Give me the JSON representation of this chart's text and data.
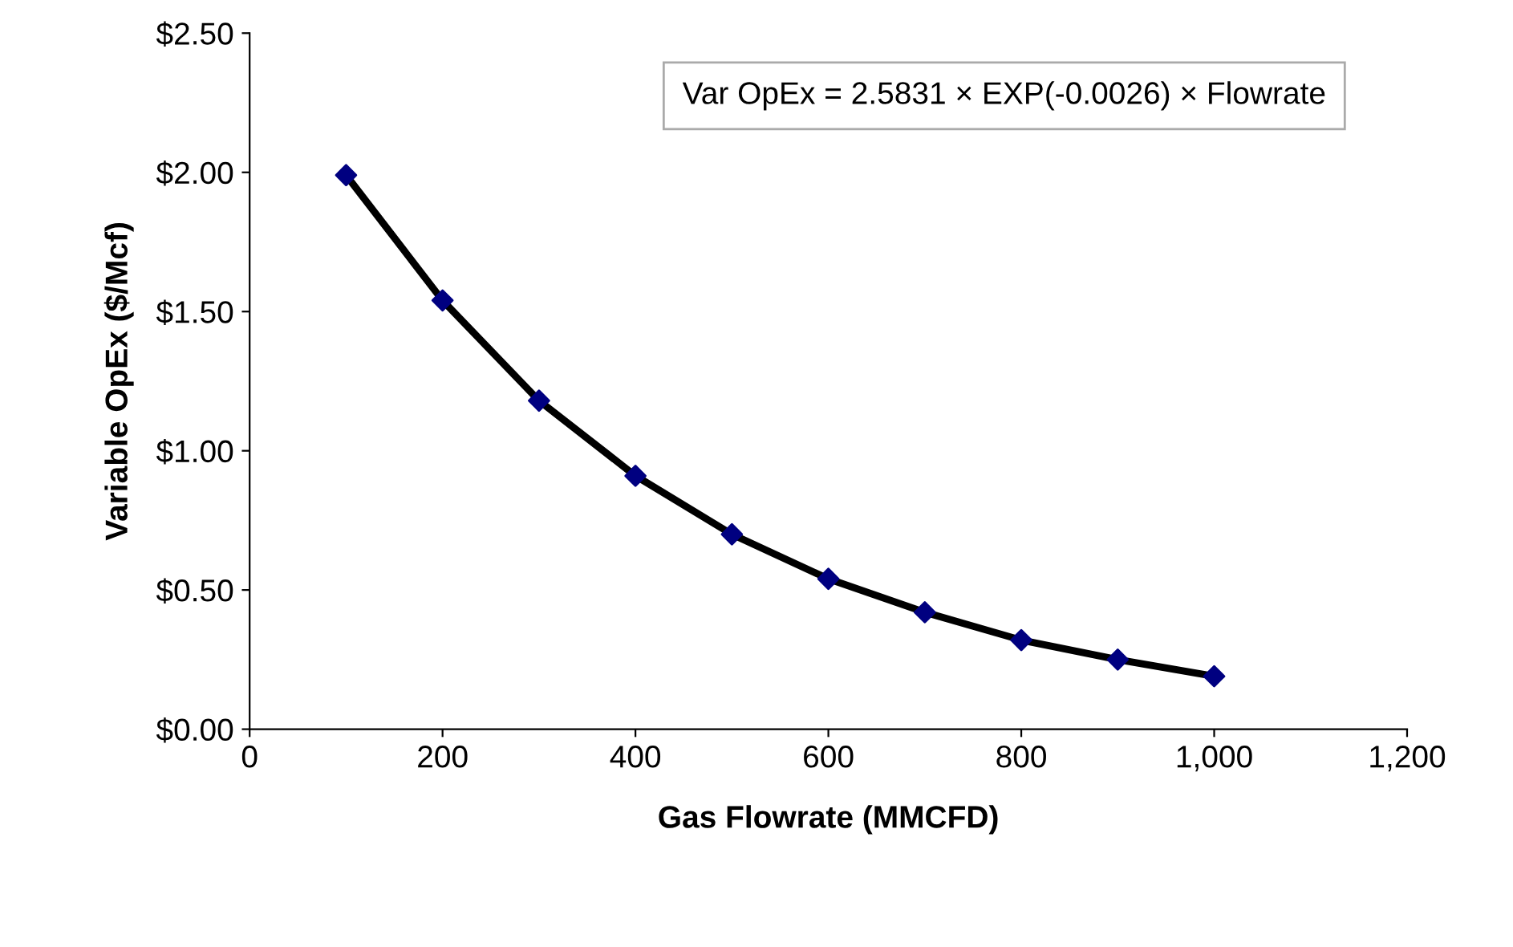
{
  "chart_data": {
    "type": "scatter",
    "xlabel": "Gas Flowrate (MMCFD)",
    "ylabel": "Variable OpEx ($/Mcf)",
    "x": [
      100,
      200,
      300,
      400,
      500,
      600,
      700,
      800,
      900,
      1000
    ],
    "series": [
      {
        "type": "line",
        "color": "#000000",
        "marker": "none",
        "line_style": "solid",
        "values": [
          1.99,
          1.54,
          1.18,
          0.91,
          0.7,
          0.54,
          0.42,
          0.32,
          0.25,
          0.19
        ]
      },
      {
        "color": "#000080",
        "marker": "diamond",
        "values": [
          1.99,
          1.54,
          1.18,
          0.91,
          0.7,
          0.54,
          0.42,
          0.32,
          0.25,
          0.19
        ]
      }
    ],
    "xlim": [
      0,
      1200
    ],
    "xticks": [
      0,
      200,
      400,
      600,
      800,
      {
        "value": 1000,
        "label": "1,000"
      },
      {
        "value": 1200,
        "label": "1,200"
      }
    ],
    "ylim": [
      0,
      2.5
    ],
    "yticks": [
      {
        "value": 0,
        "label": "$0.00"
      },
      {
        "value": 0.5,
        "label": "$0.50"
      },
      {
        "value": 1.0,
        "label": "$1.00"
      },
      {
        "value": 1.5,
        "label": "$1.50"
      },
      {
        "value": 2.0,
        "label": "$2.00"
      },
      {
        "value": 2.5,
        "label": "$2.50"
      }
    ],
    "grid": false,
    "annotations": [
      "Var OpEx = 2.5831 × EXP(-0.0026) × Flowrate"
    ]
  }
}
